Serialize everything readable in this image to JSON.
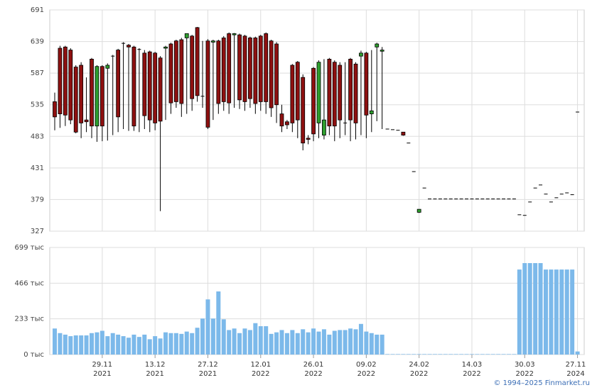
{
  "chart_data": [
    {
      "type": "candlestick",
      "ylim": [
        327,
        691
      ],
      "yticks": [
        327,
        379,
        431,
        483,
        535,
        587,
        639,
        691
      ],
      "up_color": "#2e9e2e",
      "down_color": "#8e1010",
      "grid": true,
      "open": [
        540,
        628,
        630,
        625,
        597,
        600,
        510,
        610,
        500,
        598,
        595,
        615,
        625,
        636,
        633,
        630,
        626,
        620,
        622,
        620,
        612,
        628,
        635,
        640,
        642,
        645,
        648,
        662,
        549,
        640,
        638,
        640,
        645,
        652,
        650,
        650,
        648,
        645,
        645,
        648,
        652,
        640,
        635,
        520,
        507,
        600,
        605,
        580,
        480,
        595,
        505,
        485,
        610,
        605,
        600,
        505,
        610,
        602,
        615,
        620,
        520,
        630,
        623,
        495,
        494,
        493,
        490,
        472,
        425,
        358,
        398,
        380,
        380,
        380,
        380,
        380,
        380,
        380,
        380,
        380,
        380,
        380,
        380,
        380,
        380,
        380,
        380,
        380,
        354,
        353,
        375,
        398,
        403,
        388,
        375,
        382,
        388,
        390,
        387,
        523
      ],
      "high": [
        555,
        632,
        632,
        628,
        600,
        605,
        580,
        612,
        600,
        600,
        603,
        617,
        627,
        638,
        635,
        632,
        628,
        625,
        624,
        622,
        615,
        632,
        637,
        642,
        645,
        652,
        650,
        663,
        640,
        643,
        642,
        642,
        648,
        654,
        653,
        652,
        650,
        647,
        647,
        650,
        654,
        642,
        638,
        535,
        510,
        602,
        607,
        585,
        485,
        597,
        608,
        610,
        612,
        608,
        605,
        605,
        612,
        605,
        624,
        622,
        625,
        637,
        630,
        495,
        494,
        493,
        490,
        472,
        425,
        363,
        398,
        380,
        380,
        380,
        380,
        380,
        380,
        380,
        380,
        380,
        380,
        380,
        380,
        380,
        380,
        380,
        380,
        380,
        354,
        353,
        375,
        398,
        403,
        388,
        375,
        382,
        388,
        390,
        387,
        523
      ],
      "low": [
        493,
        497,
        500,
        503,
        488,
        480,
        490,
        480,
        474,
        475,
        476,
        485,
        490,
        495,
        492,
        492,
        490,
        495,
        490,
        493,
        360,
        510,
        520,
        530,
        515,
        520,
        525,
        540,
        530,
        495,
        510,
        520,
        525,
        520,
        530,
        528,
        525,
        530,
        520,
        525,
        520,
        515,
        505,
        490,
        495,
        490,
        480,
        460,
        470,
        475,
        480,
        478,
        485,
        475,
        480,
        485,
        475,
        478,
        485,
        480,
        490,
        508,
        495,
        495,
        494,
        493,
        484,
        472,
        425,
        357,
        398,
        380,
        380,
        380,
        380,
        380,
        380,
        380,
        380,
        380,
        380,
        380,
        380,
        380,
        380,
        380,
        380,
        380,
        354,
        353,
        375,
        398,
        403,
        388,
        375,
        382,
        388,
        390,
        387,
        523
      ],
      "close": [
        515,
        520,
        518,
        510,
        490,
        505,
        507,
        500,
        598,
        500,
        600,
        615,
        515,
        636,
        630,
        500,
        626,
        517,
        510,
        505,
        508,
        630,
        538,
        540,
        537,
        652,
        545,
        550,
        549,
        498,
        640,
        537,
        540,
        538,
        652,
        543,
        540,
        545,
        537,
        540,
        540,
        530,
        535,
        500,
        502,
        505,
        510,
        472,
        478,
        487,
        605,
        510,
        500,
        500,
        510,
        505,
        510,
        505,
        620,
        518,
        525,
        635,
        625,
        495,
        494,
        493,
        485,
        472,
        425,
        363,
        398,
        380,
        380,
        380,
        380,
        380,
        380,
        380,
        380,
        380,
        380,
        380,
        380,
        380,
        380,
        380,
        380,
        380,
        354,
        353,
        375,
        398,
        403,
        388,
        375,
        382,
        388,
        390,
        387,
        523
      ]
    },
    {
      "type": "bar",
      "color": "#7cb9ea",
      "grid": true,
      "ylim": [
        0,
        699
      ],
      "yticks": [
        {
          "value": 0,
          "label": "0 тыс"
        },
        {
          "value": 233,
          "label": "233 тыс"
        },
        {
          "value": 466,
          "label": "466 тыс"
        },
        {
          "value": 699,
          "label": "699 тыс"
        }
      ],
      "categories": [
        null,
        null,
        null,
        null,
        null,
        null,
        null,
        null,
        null,
        "29.11\n2021",
        null,
        null,
        null,
        null,
        null,
        null,
        null,
        null,
        null,
        "13.12\n2021",
        null,
        null,
        null,
        null,
        null,
        null,
        null,
        null,
        null,
        "27.12\n2021",
        null,
        null,
        null,
        null,
        null,
        null,
        null,
        null,
        null,
        "12.01\n2022",
        null,
        null,
        null,
        null,
        null,
        null,
        null,
        null,
        null,
        "26.01\n2022",
        null,
        null,
        null,
        null,
        null,
        null,
        null,
        null,
        null,
        "09.02\n2022",
        null,
        null,
        null,
        null,
        null,
        null,
        null,
        null,
        null,
        "24.02\n2022",
        null,
        null,
        null,
        null,
        null,
        null,
        null,
        null,
        null,
        "14.03\n2022",
        null,
        null,
        null,
        null,
        null,
        null,
        null,
        null,
        null,
        "30.03\n2022",
        null,
        null,
        null,
        null,
        null,
        null,
        null,
        null,
        null,
        "27.11\n2024"
      ],
      "values": [
        170,
        140,
        130,
        120,
        125,
        125,
        125,
        140,
        145,
        155,
        120,
        140,
        130,
        120,
        110,
        130,
        115,
        130,
        100,
        120,
        105,
        145,
        140,
        140,
        135,
        150,
        140,
        175,
        235,
        360,
        235,
        412,
        230,
        160,
        170,
        140,
        170,
        160,
        205,
        185,
        185,
        135,
        145,
        160,
        140,
        160,
        140,
        165,
        145,
        170,
        150,
        165,
        130,
        155,
        160,
        160,
        170,
        165,
        200,
        150,
        140,
        130,
        130,
        3,
        3,
        3,
        3,
        3,
        3,
        3,
        3,
        3,
        3,
        3,
        3,
        3,
        3,
        3,
        3,
        3,
        3,
        3,
        3,
        3,
        3,
        3,
        3,
        3,
        555,
        597,
        597,
        597,
        597,
        555,
        555,
        555,
        555,
        555,
        555,
        20
      ]
    }
  ],
  "footer": "© 1994–2025 Finmarket.ru"
}
